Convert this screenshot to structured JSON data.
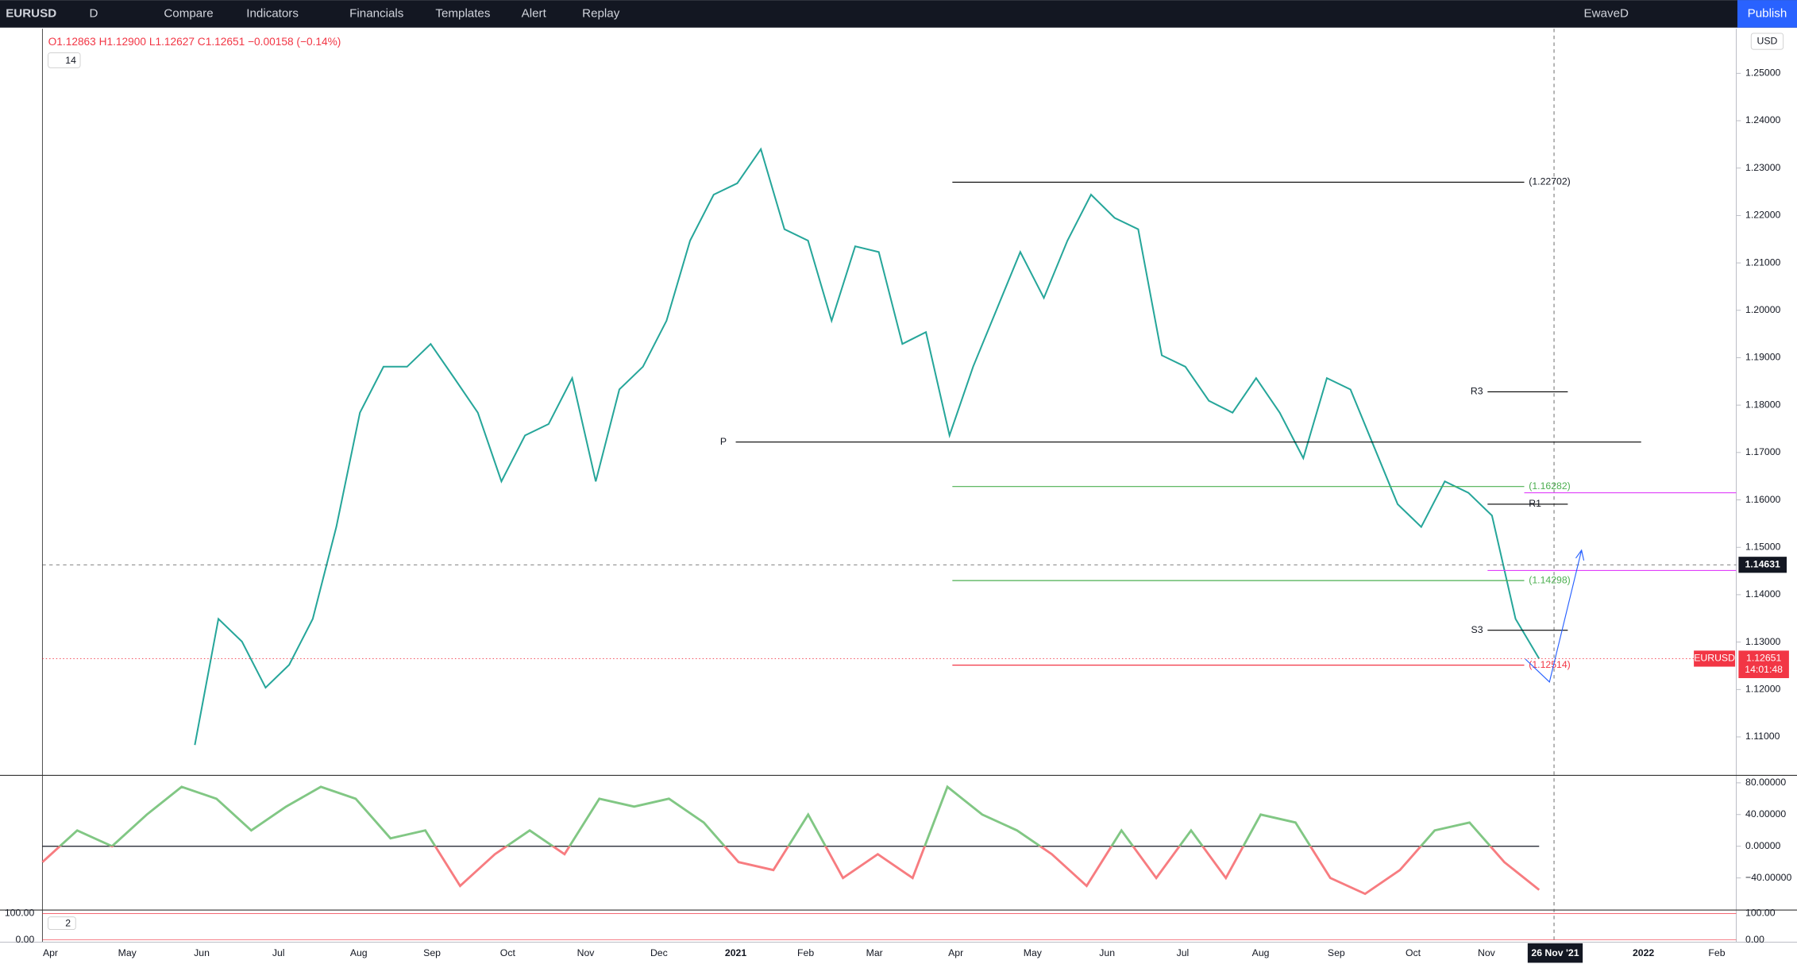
{
  "toolbar": {
    "symbol": "EURUSD",
    "interval": "D",
    "items": [
      "Compare",
      "Indicators",
      "Financials",
      "Templates",
      "Alert",
      "Replay"
    ],
    "layout_name": "EwaveD",
    "publish": "Publish"
  },
  "legend": {
    "ohlc": "O1.12863 H1.12900 L1.12627 C1.12651 −0.00158 (−0.14%)",
    "collapse_count": "14"
  },
  "currency": "USD",
  "price_pane": {
    "ylim": [
      1.102,
      1.2594
    ],
    "yticks": [
      {
        "value": 1.25,
        "label": "1.25000"
      },
      {
        "value": 1.24,
        "label": "1.24000"
      },
      {
        "value": 1.23,
        "label": "1.23000"
      },
      {
        "value": 1.22,
        "label": "1.22000"
      },
      {
        "value": 1.21,
        "label": "1.21000"
      },
      {
        "value": 1.2,
        "label": "1.20000"
      },
      {
        "value": 1.19,
        "label": "1.19000"
      },
      {
        "value": 1.18,
        "label": "1.18000"
      },
      {
        "value": 1.17,
        "label": "1.17000"
      },
      {
        "value": 1.16,
        "label": "1.16000"
      },
      {
        "value": 1.15,
        "label": "1.15000"
      },
      {
        "value": 1.14,
        "label": "1.14000"
      },
      {
        "value": 1.13,
        "label": "1.13000"
      },
      {
        "value": 1.12,
        "label": "1.12000"
      },
      {
        "value": 1.11,
        "label": "1.11000"
      }
    ],
    "close": [
      1.1083,
      1.1349,
      1.1301,
      1.1204,
      1.1252,
      1.1349,
      1.1543,
      1.1784,
      1.1881,
      1.1881,
      1.1929,
      1.1857,
      1.1784,
      1.1639,
      1.1736,
      1.176,
      1.1857,
      1.1639,
      1.1833,
      1.1881,
      1.1978,
      1.2147,
      1.2244,
      1.2268,
      1.234,
      1.2171,
      1.2147,
      1.1978,
      1.2135,
      1.2123,
      1.1929,
      1.1954,
      1.1736,
      1.1881,
      1.2002,
      1.2123,
      1.2026,
      1.2147,
      1.2244,
      1.2195,
      1.2171,
      1.1905,
      1.1881,
      1.1809,
      1.1784,
      1.1857,
      1.1784,
      1.1688,
      1.1857,
      1.1833,
      1.1712,
      1.1591,
      1.1543,
      1.1639,
      1.1615,
      1.1567,
      1.1349,
      1.1265
    ],
    "color": "#26a69a",
    "levels": [
      {
        "value": 1.22702,
        "label": "(1.22702)",
        "color": "#000000"
      },
      {
        "value": 1.1722,
        "label": "P",
        "color": "#000000"
      },
      {
        "value": 1.1828,
        "label": "R3",
        "color": "#000000"
      },
      {
        "value": 1.16282,
        "label": "(1.16282)",
        "color": "#4caf50"
      },
      {
        "value": 1.1591,
        "label": "R1",
        "color": "#000000"
      },
      {
        "value": 1.14298,
        "label": "(1.14298)",
        "color": "#4caf50"
      },
      {
        "value": 1.1325,
        "label": "S3",
        "color": "#000000"
      },
      {
        "value": 1.12514,
        "label": "(1.12514)",
        "color": "#f23645"
      }
    ],
    "pink_lines": [
      1.1615,
      1.1451
    ],
    "crosshair_price": 1.14631,
    "last_price": 1.12651,
    "last_symbol": "EURUSD",
    "countdown": "14:01:48"
  },
  "oscillator_pane": {
    "ylim": [
      -79,
      88.7
    ],
    "yticks": [
      {
        "value": 80,
        "label": "80.00000"
      },
      {
        "value": 40,
        "label": "40.00000"
      },
      {
        "value": 0,
        "label": "0.00000"
      },
      {
        "value": -40,
        "label": "−40.00000"
      }
    ],
    "values": [
      -20,
      20,
      0,
      40,
      75,
      60,
      20,
      50,
      75,
      60,
      10,
      20,
      -50,
      -10,
      20,
      -10,
      60,
      50,
      60,
      30,
      -20,
      -30,
      40,
      -40,
      -10,
      -40,
      75,
      40,
      20,
      -10,
      -50,
      20,
      -40,
      20,
      -40,
      40,
      30,
      -40,
      -60,
      -30,
      20,
      30,
      -20,
      -55
    ],
    "up_color": "#81c784",
    "down_color": "#f77c80"
  },
  "stoch_pane": {
    "collapse_count": "2",
    "ylim": [
      -8.7,
      108.7
    ],
    "yticks": [
      {
        "value": 100,
        "label": "100.00"
      },
      {
        "value": 0,
        "label": "0.00"
      }
    ]
  },
  "time_axis": {
    "labels": [
      "Apr",
      "May",
      "Jun",
      "Jul",
      "Aug",
      "Sep",
      "Oct",
      "Nov",
      "Dec",
      "2021",
      "Feb",
      "Mar",
      "Apr",
      "May",
      "Jun",
      "Jul",
      "Aug",
      "Sep",
      "Oct",
      "Nov",
      "26 Nov '21",
      "2022",
      "Feb"
    ]
  }
}
